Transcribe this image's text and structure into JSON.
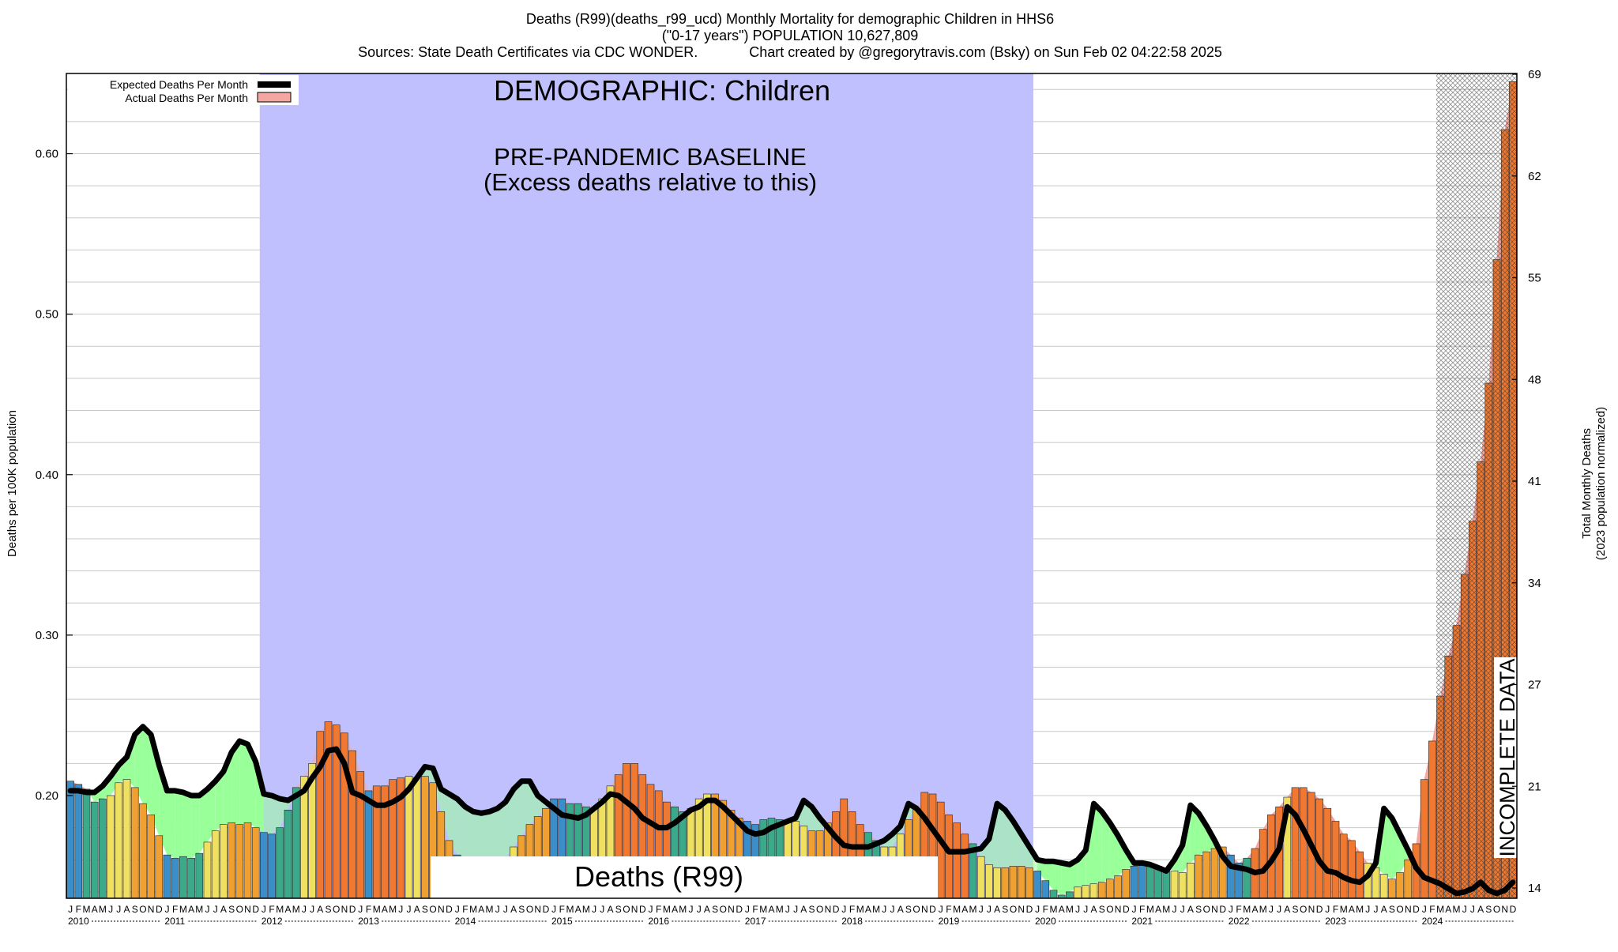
{
  "chart_data": {
    "type": "bar",
    "title_lines": [
      "Deaths (R99)(deaths_r99_ucd) Monthly Mortality for demographic Children in HHS6",
      "(\"0-17 years\") POPULATION 10,627,809",
      "Sources: State Death Certificates via CDC WONDER.             Chart created by @gregorytravis.com (Bsky) on Sun Feb 02 04:22:58 2025"
    ],
    "ylabel_left": "Deaths per 100K population",
    "ylabel_right_lines": [
      "Total Monthly Deaths",
      "(2023 population normalized)"
    ],
    "ylim": [
      0.136,
      0.65
    ],
    "y_ticks_left": [
      "0.20",
      "0.30",
      "0.40",
      "0.50",
      "0.60"
    ],
    "y_ticks_right": [
      "14",
      "21",
      "27",
      "34",
      "41",
      "48",
      "55",
      "62",
      "69"
    ],
    "legend": [
      {
        "label": "Expected Deaths Per Month",
        "color": "#000000"
      },
      {
        "label": "Actual Deaths Per Month",
        "color": "#f4a6a0"
      }
    ],
    "legend_position": "top-left",
    "month_letters": [
      "J",
      "F",
      "M",
      "A",
      "M",
      "J",
      "J",
      "A",
      "S",
      "O",
      "N",
      "D"
    ],
    "years": [
      "2010",
      "2011",
      "2012",
      "2013",
      "2014",
      "2015",
      "2016",
      "2017",
      "2018",
      "2019",
      "2020",
      "2021",
      "2022",
      "2023",
      "2024"
    ],
    "annotations": {
      "demographic": "DEMOGRAPHIC: Children",
      "baseline_line1": "PRE-PANDEMIC BASELINE",
      "baseline_line2": "(Excess deaths relative to this)",
      "cause_label": "Deaths (R99)",
      "incomplete": "INCOMPLETE DATA"
    },
    "baseline_period": [
      "2012-01",
      "2019-12"
    ],
    "incomplete_period": [
      "2024-03",
      "2024-12"
    ],
    "colors": {
      "expected_line": "#000000",
      "baseline_fill": "#c0c0ff",
      "below_expected_fill": "#99ff99",
      "above_expected_fill": "#f4a6a0",
      "bar_winter": "#3a8fc8",
      "bar_spring": "#3aaa8a",
      "bar_summer": "#f0e060",
      "bar_fall": "#f0a030",
      "bar_high": "#f07830"
    },
    "actual": [
      0.209,
      0.207,
      0.204,
      0.196,
      0.198,
      0.2,
      0.208,
      0.21,
      0.205,
      0.195,
      0.188,
      0.175,
      0.163,
      0.161,
      0.162,
      0.161,
      0.164,
      0.171,
      0.178,
      0.182,
      0.183,
      0.182,
      0.183,
      0.18,
      0.177,
      0.176,
      0.18,
      0.191,
      0.205,
      0.212,
      0.22,
      0.24,
      0.246,
      0.244,
      0.239,
      0.228,
      0.215,
      0.203,
      0.206,
      0.206,
      0.21,
      0.211,
      0.212,
      0.211,
      0.212,
      0.208,
      0.19,
      0.172,
      0.163,
      0.159,
      0.157,
      0.155,
      0.155,
      0.153,
      0.161,
      0.168,
      0.175,
      0.182,
      0.187,
      0.192,
      0.198,
      0.198,
      0.195,
      0.195,
      0.193,
      0.192,
      0.198,
      0.206,
      0.213,
      0.22,
      0.22,
      0.213,
      0.207,
      0.203,
      0.196,
      0.193,
      0.19,
      0.192,
      0.198,
      0.201,
      0.201,
      0.197,
      0.191,
      0.186,
      0.184,
      0.182,
      0.185,
      0.186,
      0.185,
      0.183,
      0.184,
      0.181,
      0.178,
      0.178,
      0.183,
      0.19,
      0.198,
      0.19,
      0.182,
      0.177,
      0.172,
      0.168,
      0.168,
      0.176,
      0.185,
      0.192,
      0.202,
      0.201,
      0.196,
      0.188,
      0.183,
      0.176,
      0.17,
      0.162,
      0.157,
      0.155,
      0.155,
      0.156,
      0.156,
      0.155,
      0.153,
      0.147,
      0.141,
      0.138,
      0.14,
      0.143,
      0.144,
      0.145,
      0.146,
      0.148,
      0.15,
      0.154,
      0.156,
      0.157,
      0.157,
      0.156,
      0.155,
      0.153,
      0.152,
      0.158,
      0.163,
      0.165,
      0.167,
      0.168,
      0.163,
      0.158,
      0.161,
      0.167,
      0.179,
      0.188,
      0.193,
      0.199,
      0.205,
      0.205,
      0.202,
      0.198,
      0.192,
      0.184,
      0.176,
      0.172,
      0.165,
      0.158,
      0.155,
      0.151,
      0.148,
      0.152,
      0.16,
      0.17,
      0.21,
      0.234,
      0.262,
      0.287,
      0.306,
      0.338,
      0.371,
      0.408,
      0.457,
      0.534,
      0.615,
      0.645
    ],
    "expected": [
      0.203,
      0.203,
      0.202,
      0.202,
      0.206,
      0.212,
      0.219,
      0.224,
      0.238,
      0.243,
      0.238,
      0.219,
      0.203,
      0.203,
      0.202,
      0.2,
      0.2,
      0.204,
      0.209,
      0.215,
      0.227,
      0.234,
      0.232,
      0.221,
      0.201,
      0.2,
      0.198,
      0.197,
      0.2,
      0.203,
      0.211,
      0.218,
      0.228,
      0.229,
      0.22,
      0.202,
      0.2,
      0.197,
      0.194,
      0.194,
      0.196,
      0.199,
      0.204,
      0.211,
      0.218,
      0.217,
      0.204,
      0.201,
      0.198,
      0.193,
      0.19,
      0.189,
      0.19,
      0.192,
      0.196,
      0.204,
      0.209,
      0.209,
      0.2,
      0.196,
      0.192,
      0.188,
      0.187,
      0.186,
      0.188,
      0.192,
      0.196,
      0.201,
      0.2,
      0.196,
      0.192,
      0.186,
      0.183,
      0.18,
      0.18,
      0.183,
      0.187,
      0.191,
      0.193,
      0.197,
      0.197,
      0.193,
      0.188,
      0.183,
      0.178,
      0.176,
      0.177,
      0.18,
      0.182,
      0.184,
      0.186,
      0.197,
      0.193,
      0.186,
      0.18,
      0.174,
      0.169,
      0.168,
      0.168,
      0.168,
      0.17,
      0.172,
      0.176,
      0.181,
      0.195,
      0.192,
      0.186,
      0.179,
      0.172,
      0.165,
      0.165,
      0.165,
      0.166,
      0.167,
      0.173,
      0.195,
      0.191,
      0.184,
      0.176,
      0.168,
      0.16,
      0.159,
      0.159,
      0.158,
      0.157,
      0.16,
      0.166,
      0.195,
      0.19,
      0.183,
      0.175,
      0.166,
      0.158,
      0.158,
      0.157,
      0.155,
      0.153,
      0.16,
      0.169,
      0.194,
      0.189,
      0.181,
      0.172,
      0.162,
      0.156,
      0.155,
      0.154,
      0.152,
      0.153,
      0.159,
      0.167,
      0.193,
      0.188,
      0.179,
      0.169,
      0.159,
      0.153,
      0.152,
      0.149,
      0.147,
      0.146,
      0.15,
      0.158,
      0.192,
      0.186,
      0.176,
      0.166,
      0.155,
      0.149,
      0.147,
      0.145,
      0.142,
      0.139,
      0.14,
      0.142,
      0.146,
      0.141,
      0.139,
      0.141,
      0.146
    ]
  }
}
